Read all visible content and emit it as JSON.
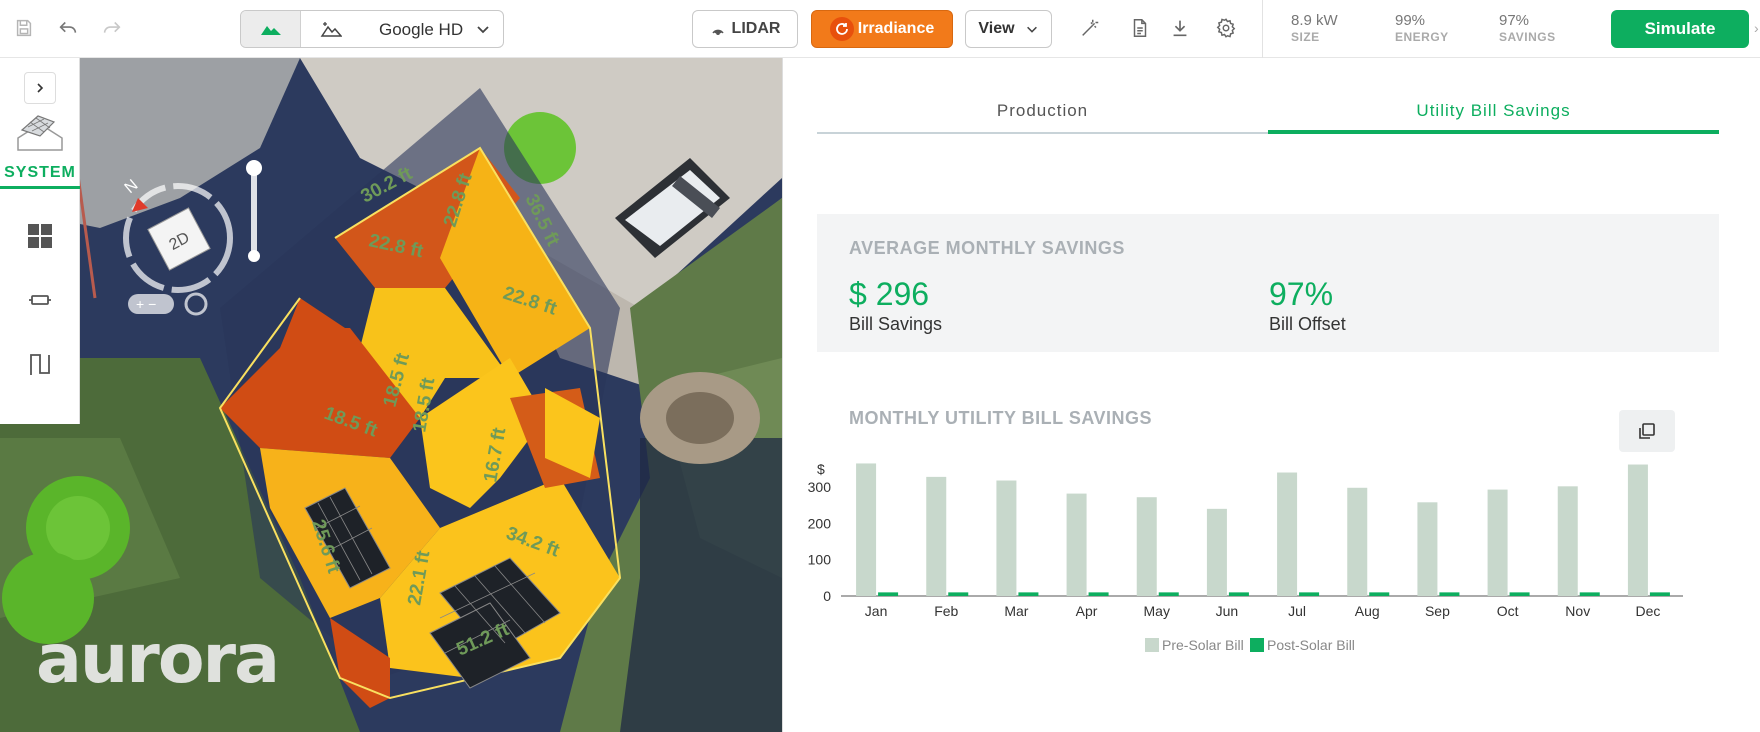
{
  "toolbar": {
    "map_source": "Google HD",
    "lidar_label": "LIDAR",
    "irradiance_label": "Irradiance",
    "view_label": "View",
    "simulate_label": "Simulate",
    "stats": [
      {
        "value": "8.9 kW",
        "label": "SIZE"
      },
      {
        "value": "99%",
        "label": "ENERGY"
      },
      {
        "value": "97%",
        "label": "SAVINGS"
      }
    ]
  },
  "sidebar": {
    "system_label": "SYSTEM"
  },
  "map": {
    "compass_north": "N",
    "view_mode": "2D",
    "logo_text": "aurora",
    "dimensions": [
      "30.2 ft",
      "22.8 ft",
      "22.8 ft",
      "36.5 ft",
      "22.8 ft",
      "18.5 ft",
      "18.5 ft",
      "18.5 ft",
      "16.7 ft",
      "34.2 ft",
      "25.6 ft",
      "22.1 ft",
      "51.2 ft"
    ]
  },
  "tabs": {
    "production": "Production",
    "utility": "Utility Bill Savings"
  },
  "savings": {
    "title": "AVERAGE MONTHLY SAVINGS",
    "bill_savings_value": "$ 296",
    "bill_savings_label": "Bill Savings",
    "bill_offset_value": "97%",
    "bill_offset_label": "Bill Offset"
  },
  "chart_title": "MONTHLY UTILITY BILL SAVINGS",
  "colors": {
    "accent": "#0dae5f",
    "irradiance": "#f27a1a",
    "pre_solar": "#c8d8cc",
    "post_solar": "#0dae5f"
  },
  "chart_data": {
    "type": "bar",
    "title": "MONTHLY UTILITY BILL SAVINGS",
    "ylabel": "$",
    "xlabel": "",
    "categories": [
      "Jan",
      "Feb",
      "Mar",
      "Apr",
      "May",
      "Jun",
      "Jul",
      "Aug",
      "Sep",
      "Oct",
      "Nov",
      "Dec"
    ],
    "yticks": [
      0,
      100,
      200,
      300
    ],
    "ylim": [
      0,
      380
    ],
    "series": [
      {
        "name": "Pre-Solar Bill",
        "values": [
          365,
          328,
          318,
          282,
          272,
          240,
          340,
          298,
          258,
          293,
          302,
          362
        ]
      },
      {
        "name": "Post-Solar Bill",
        "values": [
          10,
          10,
          10,
          10,
          10,
          10,
          10,
          10,
          10,
          10,
          10,
          10
        ]
      }
    ],
    "legend_position": "bottom",
    "grid": false
  }
}
